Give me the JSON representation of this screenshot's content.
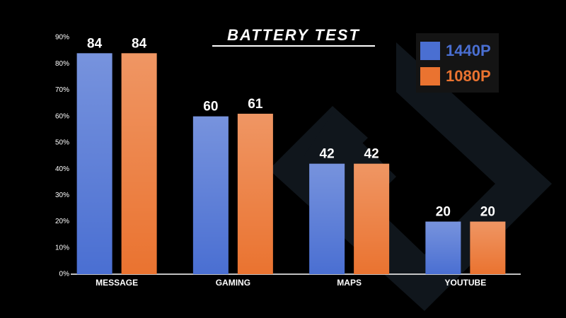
{
  "chart_data": {
    "type": "bar",
    "title": "BATTERY TEST",
    "categories": [
      "MESSAGE",
      "GAMING",
      "MAPS",
      "YOUTUBE"
    ],
    "series": [
      {
        "name": "1440P",
        "color": "#4a6fd2",
        "values": [
          84,
          60,
          42,
          20
        ]
      },
      {
        "name": "1080P",
        "color": "#ea7330",
        "values": [
          84,
          61,
          42,
          20
        ]
      }
    ],
    "ylim": [
      0,
      90
    ],
    "yticks": [
      {
        "value": 0,
        "label": "0%"
      },
      {
        "value": 10,
        "label": "10%"
      },
      {
        "value": 20,
        "label": "20%"
      },
      {
        "value": 30,
        "label": "30%"
      },
      {
        "value": 40,
        "label": "40%"
      },
      {
        "value": 50,
        "label": "50%"
      },
      {
        "value": 60,
        "label": "60%"
      },
      {
        "value": 70,
        "label": "70%"
      },
      {
        "value": 80,
        "label": "80%"
      },
      {
        "value": 90,
        "label": "90%"
      }
    ],
    "legend": "top-right"
  }
}
